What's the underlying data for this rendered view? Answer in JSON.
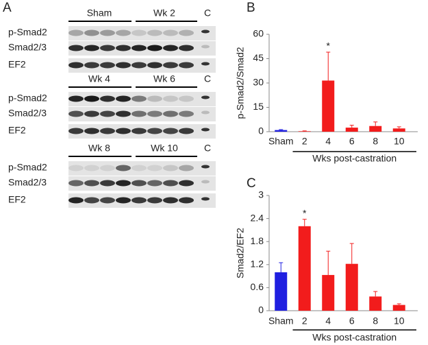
{
  "blot": {
    "label": "A",
    "groups": [
      {
        "headers": [
          "Sham",
          "Wk 2"
        ],
        "control": "C",
        "rows": [
          "p-Smad2",
          "Smad2/3",
          "EF2"
        ]
      },
      {
        "headers": [
          "Wk 4",
          "Wk 6"
        ],
        "control": "C",
        "rows": [
          "p-Smad2",
          "Smad2/3",
          "EF2"
        ]
      },
      {
        "headers": [
          "Wk 8",
          "Wk 10"
        ],
        "control": "C",
        "rows": [
          "p-Smad2",
          "Smad2/3",
          "EF2"
        ]
      }
    ]
  },
  "chart_data": [
    {
      "type": "bar",
      "panel": "B",
      "ylabel": "p-Smad2/Smad2",
      "xlabel": "Wks post-castration",
      "categories": [
        "Sham",
        "2",
        "4",
        "6",
        "8",
        "10"
      ],
      "values": [
        1,
        0.3,
        31.5,
        2.5,
        3.5,
        2
      ],
      "errors": [
        0.3,
        0.2,
        17.5,
        1.5,
        2.5,
        1
      ],
      "colors": [
        "#1f1fe0",
        "#f21c1c",
        "#f21c1c",
        "#f21c1c",
        "#f21c1c",
        "#f21c1c"
      ],
      "ylim": [
        0,
        60
      ],
      "yticks": [
        0,
        15,
        30,
        45,
        60
      ],
      "annotations": [
        {
          "text": "*",
          "x": "4"
        }
      ]
    },
    {
      "type": "bar",
      "panel": "C",
      "ylabel": "Smad2/EF2",
      "xlabel": "Wks post-castration",
      "categories": [
        "Sham",
        "2",
        "4",
        "6",
        "8",
        "10"
      ],
      "values": [
        1.0,
        2.2,
        0.93,
        1.22,
        0.37,
        0.15
      ],
      "errors": [
        0.25,
        0.18,
        0.62,
        0.53,
        0.13,
        0.03
      ],
      "colors": [
        "#1f1fe0",
        "#f21c1c",
        "#f21c1c",
        "#f21c1c",
        "#f21c1c",
        "#f21c1c"
      ],
      "ylim": [
        0,
        3
      ],
      "yticks": [
        0,
        0.6,
        1.2,
        1.8,
        2.4,
        3
      ],
      "annotations": [
        {
          "text": "*",
          "x": "2"
        }
      ]
    }
  ]
}
